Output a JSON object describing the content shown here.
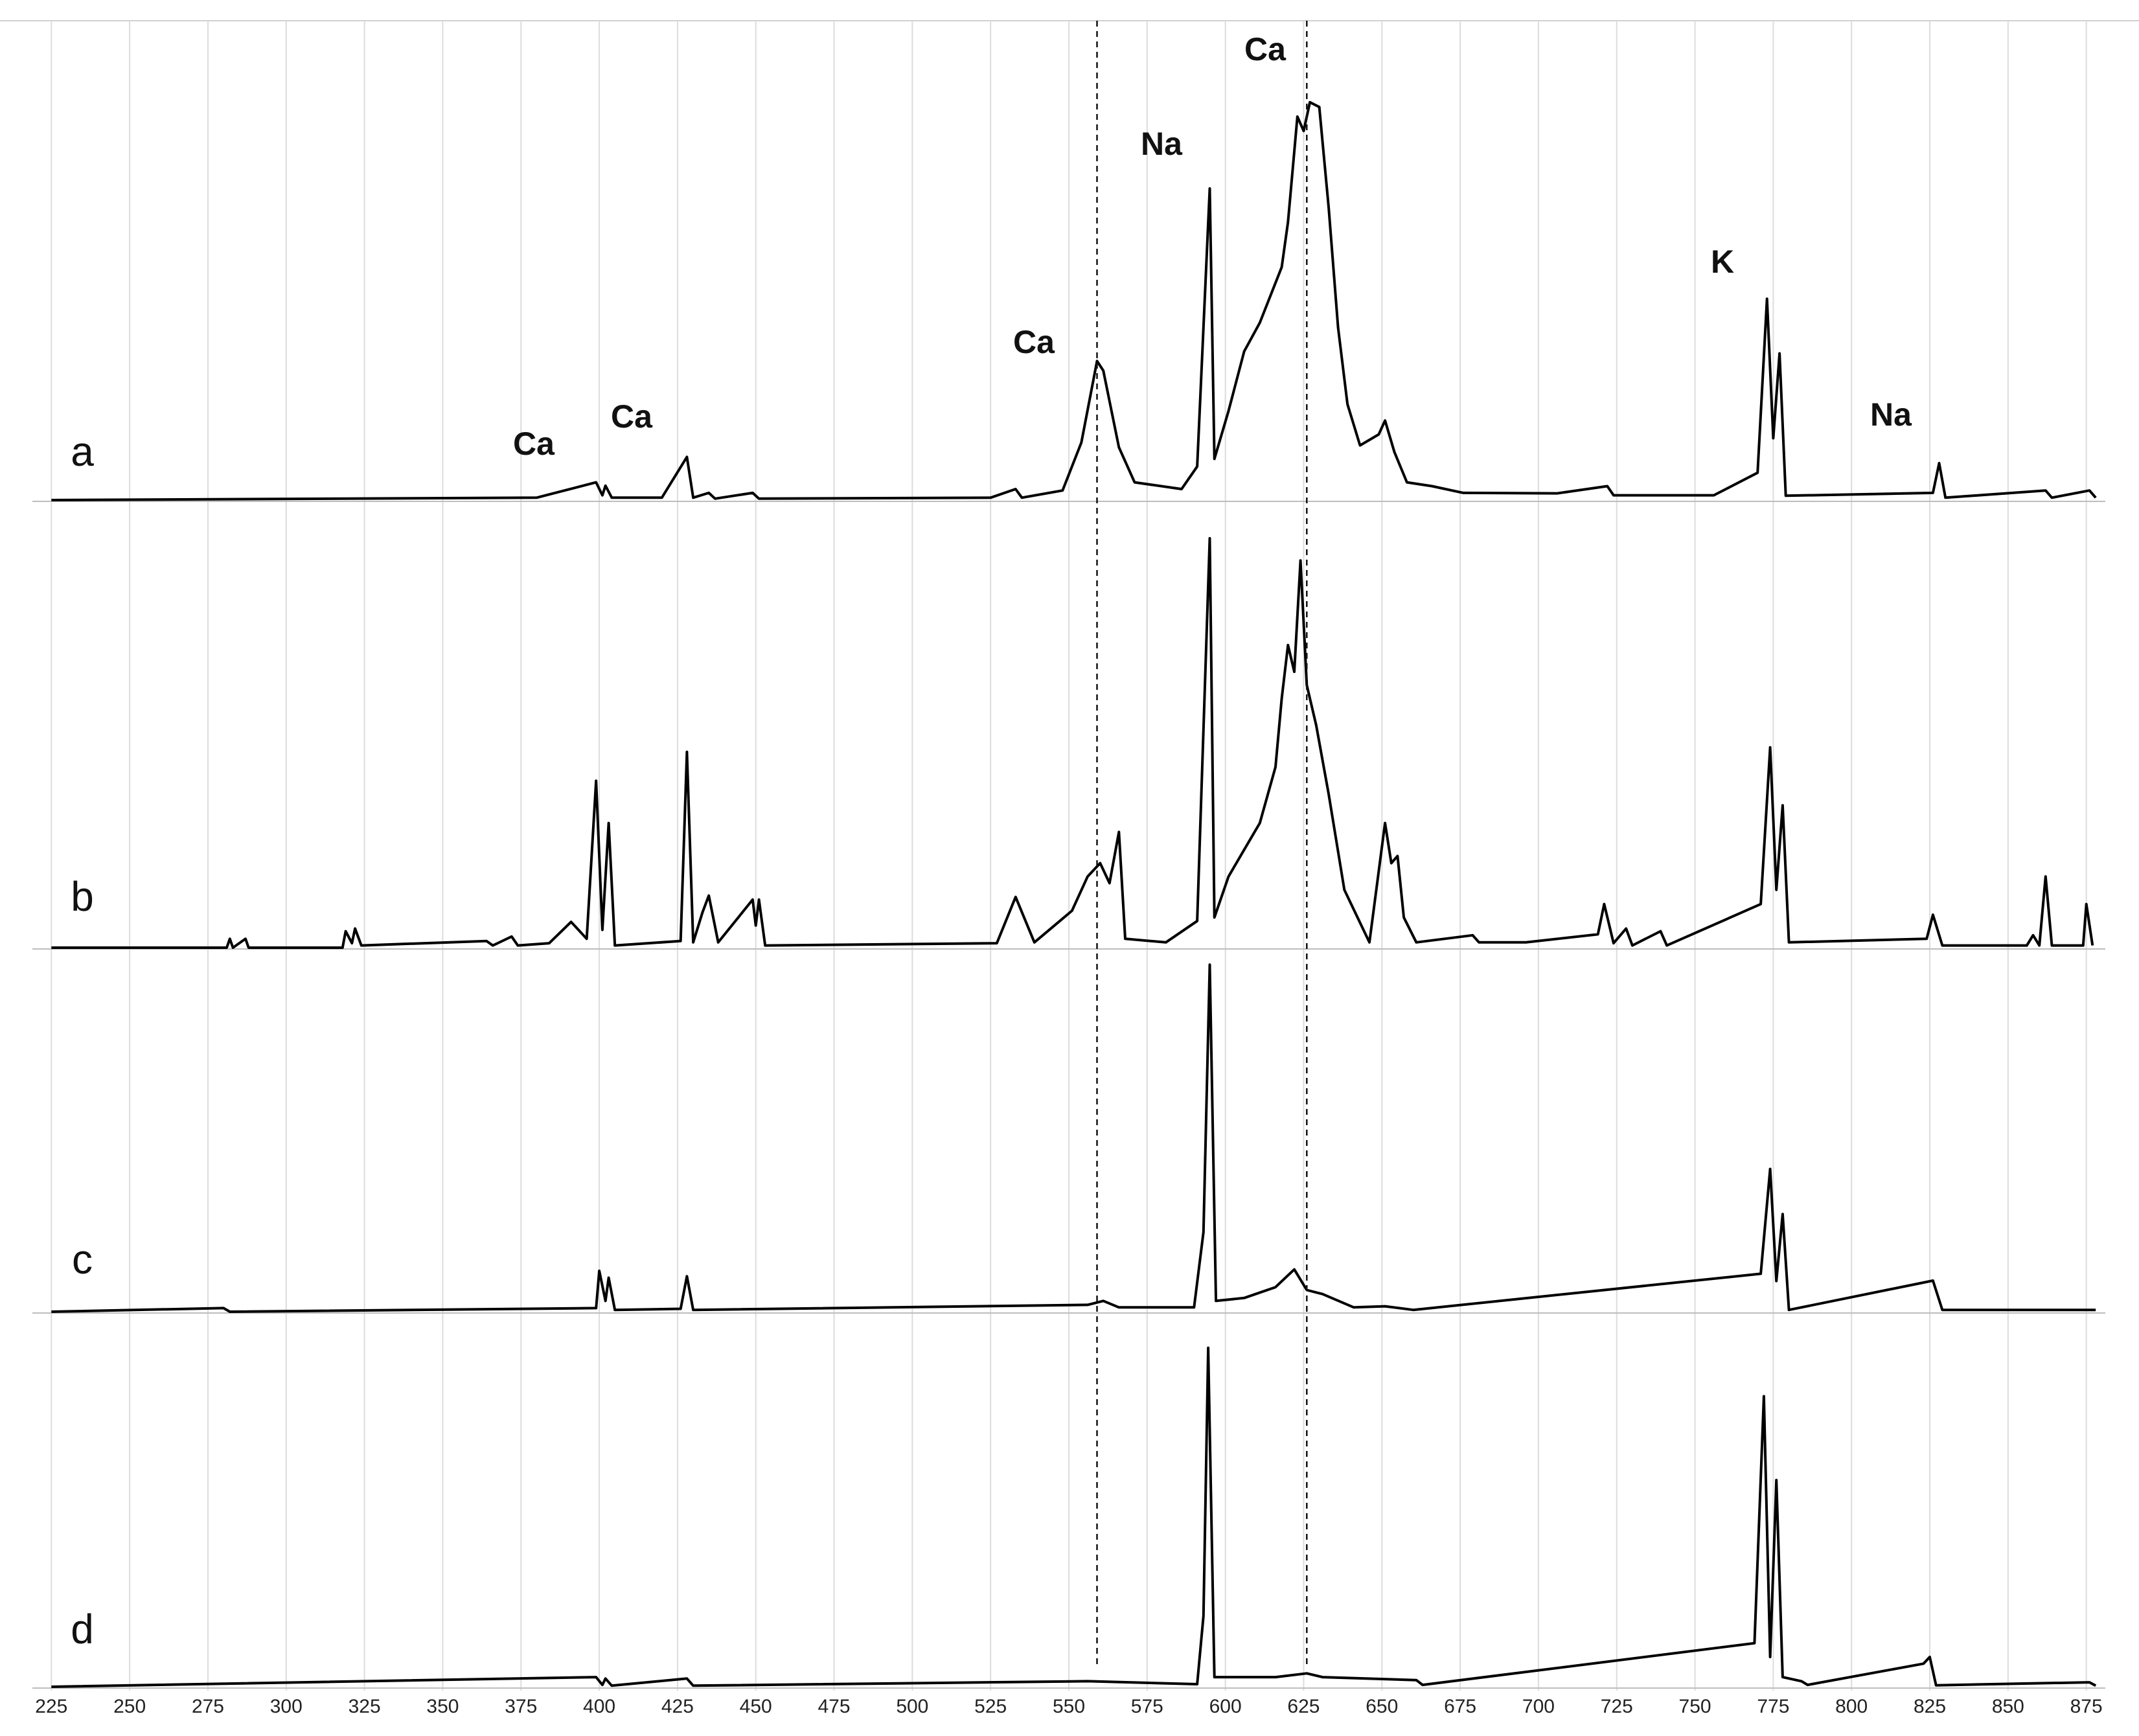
{
  "chart_data": {
    "type": "line",
    "stacked_panels": true,
    "xlim": [
      221,
      879
    ],
    "ylim": [
      0,
      100
    ],
    "xticks": [
      225,
      250,
      275,
      300,
      325,
      350,
      375,
      400,
      425,
      450,
      475,
      500,
      525,
      550,
      575,
      600,
      625,
      650,
      675,
      700,
      725,
      750,
      775,
      800,
      825,
      850,
      875
    ],
    "grid": true,
    "color": "#000000",
    "vlines": [
      559,
      626
    ],
    "annotations": [
      "Ca",
      "Ca",
      "Ca",
      "Na",
      "Ca",
      "K",
      "Na"
    ],
    "series": [
      {
        "name": "a",
        "color": "#000000",
        "x": [
          225,
          380,
          399,
          401,
          402,
          404,
          420,
          428,
          430,
          435,
          437,
          449,
          451,
          525,
          533,
          535,
          548,
          554,
          559,
          561,
          566,
          571,
          586,
          591,
          595,
          596.5,
          601,
          606,
          611,
          618,
          620,
          623,
          625,
          627,
          630,
          633,
          636,
          639,
          643,
          649,
          651,
          654,
          658,
          666,
          676,
          706,
          722,
          724,
          756,
          770,
          773,
          775,
          777,
          779,
          826,
          828,
          830,
          862,
          864,
          876,
          878
        ],
        "values": [
          0,
          0.5,
          3.7,
          1,
          3,
          0.5,
          0.5,
          9,
          0.5,
          1.5,
          0.3,
          1.5,
          0.3,
          0.5,
          2.3,
          0.5,
          2,
          12,
          29,
          27,
          11,
          3.7,
          2.3,
          7,
          65,
          8.6,
          18.6,
          31,
          37,
          48.6,
          58,
          80,
          77,
          83,
          82,
          61,
          36,
          20,
          11.4,
          13.7,
          16.6,
          10,
          3.7,
          2.9,
          1.5,
          1.4,
          2.9,
          1,
          1,
          5.7,
          42,
          12.9,
          30.6,
          0.9,
          1.5,
          7.7,
          0.5,
          2,
          0.5,
          2,
          0.5
        ]
      },
      {
        "name": "b",
        "color": "#000000",
        "x": [
          225,
          281,
          282,
          283,
          287,
          288,
          318,
          319,
          321,
          322,
          324,
          364,
          366,
          372,
          374,
          384,
          391,
          396,
          399,
          401,
          403,
          405,
          426,
          428,
          430,
          433,
          435,
          438,
          449,
          450,
          451,
          453,
          527,
          533,
          539,
          551,
          556,
          560,
          563,
          566,
          568,
          581,
          591,
          595,
          596.5,
          601,
          606,
          611,
          616,
          618,
          620,
          622,
          624,
          626,
          629,
          633,
          638,
          646,
          651,
          653,
          655,
          657,
          661,
          679,
          681,
          696,
          719,
          721,
          724,
          728,
          730,
          739,
          741,
          771,
          774,
          776,
          778,
          780,
          824,
          826,
          829,
          856,
          858,
          860,
          862,
          864,
          874,
          875,
          877
        ],
        "values": [
          0,
          0,
          2,
          0,
          2,
          0,
          0,
          3.7,
          1,
          4.3,
          0.5,
          1.5,
          0.5,
          2.5,
          0.5,
          1,
          5.8,
          2,
          37.5,
          4,
          28,
          0.5,
          1.5,
          44,
          1.2,
          8,
          11.7,
          1.2,
          10.8,
          5,
          10.8,
          0.5,
          1,
          11.4,
          1.2,
          8.3,
          16,
          19,
          14.5,
          26,
          2,
          1.2,
          6,
          92,
          6.8,
          16,
          22,
          28,
          40.6,
          56,
          68,
          62,
          87,
          59,
          50,
          34.5,
          13,
          1.2,
          28,
          19,
          20.6,
          6.8,
          1.2,
          2.8,
          1.2,
          1.2,
          3,
          9.8,
          1,
          4.3,
          0.5,
          3.7,
          0.5,
          9.8,
          45,
          13,
          32,
          1.2,
          2,
          7.4,
          0.5,
          0.5,
          2.8,
          0.5,
          16,
          0.5,
          0.5,
          9.8,
          0.5
        ]
      },
      {
        "name": "c",
        "color": "#000000",
        "x": [
          225,
          280,
          282,
          399,
          400,
          402,
          403,
          405,
          426,
          428,
          430,
          556,
          561,
          566,
          590,
          593,
          595,
          597,
          606,
          616,
          622,
          626,
          631,
          641,
          651,
          660,
          771,
          774,
          776,
          778,
          780,
          826,
          829,
          878
        ],
        "values": [
          0,
          1,
          0,
          1,
          11.3,
          3,
          9.4,
          0.5,
          0.8,
          9.8,
          0.5,
          1.9,
          3,
          1.2,
          1.2,
          22,
          96,
          3,
          3.8,
          6.8,
          11.7,
          6,
          4.9,
          1.2,
          1.5,
          0.5,
          10.5,
          39.5,
          8.5,
          27,
          0.5,
          8.6,
          0.5,
          0.5
        ]
      },
      {
        "name": "d",
        "color": "#000000",
        "x": [
          225,
          399,
          401,
          402,
          404,
          428,
          430,
          556,
          591,
          593,
          594.5,
          596.5,
          616,
          626,
          631,
          661,
          663,
          769,
          772,
          774,
          776,
          778,
          784,
          786,
          823,
          825,
          827,
          876,
          878
        ],
        "values": [
          0,
          2.6,
          0.5,
          2.2,
          0.3,
          2.2,
          0.3,
          1.5,
          0.7,
          19,
          91,
          2.6,
          2.6,
          3.6,
          2.6,
          1.8,
          0.5,
          11.7,
          78,
          8,
          55.5,
          2.6,
          1.5,
          0.5,
          6.2,
          8,
          0.4,
          1.2,
          0.3
        ]
      }
    ]
  }
}
